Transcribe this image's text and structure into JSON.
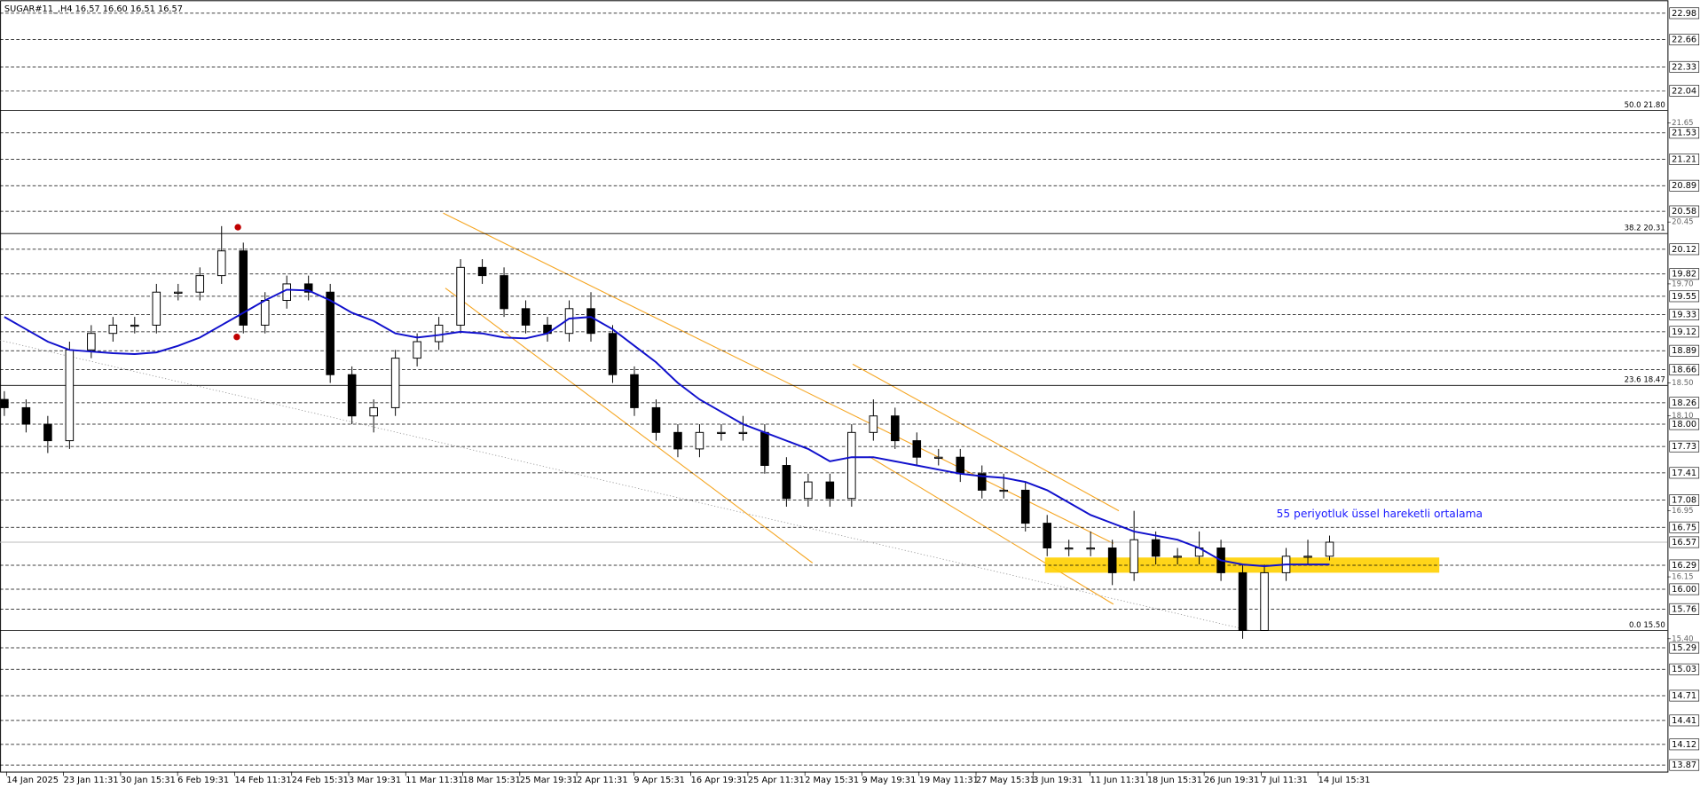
{
  "chart_data": {
    "type": "candlestick",
    "title": "SUGAR#11_,H4  16.57 16.60 16.51 16.57",
    "annotation": "55 periyotluk üssel hareketli ortalama",
    "ylim": [
      13.87,
      22.98
    ],
    "yticks": [
      22.98,
      22.66,
      22.33,
      {
        "value": 22.04,
        "label": "22.04"
      },
      21.53,
      21.21,
      20.89,
      20.58,
      20.12,
      19.82,
      19.55,
      19.33,
      19.12,
      18.89,
      18.66,
      18.26,
      {
        "value": 18.0,
        "label": "18.00"
      },
      17.73,
      17.41,
      17.08,
      16.75,
      16.29,
      {
        "value": 16.0,
        "label": "16.00"
      },
      15.76,
      15.29,
      15.03,
      14.71,
      14.41,
      14.12,
      13.87
    ],
    "minor_ticks": [
      {
        "value": 21.65,
        "label": "21.65"
      },
      {
        "value": 20.45,
        "label": "20.45"
      },
      {
        "value": 19.7,
        "label": "19.70"
      },
      {
        "value": 18.5,
        "label": "18.50"
      },
      {
        "value": 18.1,
        "label": "18.10"
      },
      {
        "value": 16.95,
        "label": "16.95"
      },
      {
        "value": 16.15,
        "label": "16.15"
      },
      {
        "value": 15.4,
        "label": "15.40"
      }
    ],
    "levels": [
      {
        "value": 21.8,
        "label": "50.0 21.80"
      },
      {
        "value": 20.31,
        "label": "38.2 20.31"
      },
      {
        "value": 18.47,
        "label": "23.6 18.47"
      },
      {
        "value": 15.5,
        "label": "0.0 15.50"
      }
    ],
    "last_price": 16.57,
    "grid": true,
    "x_labels": [
      "14 Jan 2025",
      "23 Jan 11:31",
      "30 Jan 15:31",
      "6 Feb 19:31",
      "14 Feb 11:31",
      "24 Feb 15:31",
      "3 Mar 19:31",
      "11 Mar 11:31",
      "18 Mar 15:31",
      "25 Mar 19:31",
      "2 Apr 11:31",
      "9 Apr 15:31",
      "16 Apr 19:31",
      "25 Apr 11:31",
      "2 May 15:31",
      "9 May 19:31",
      "19 May 11:31",
      "27 May 15:31",
      "3 Jun 19:31",
      "11 Jun 11:31",
      "18 Jun 15:31",
      "26 Jun 19:31",
      "7 Jul 11:31",
      "14 Jul 15:31"
    ],
    "open": [
      18.3,
      18.2,
      18.0,
      17.8,
      18.9,
      19.1,
      19.2,
      19.2,
      19.6,
      19.6,
      19.8,
      20.1,
      19.2,
      19.5,
      19.7,
      19.6,
      18.6,
      18.1,
      18.2,
      18.8,
      19.0,
      19.2,
      19.9,
      19.8,
      19.4,
      19.2,
      19.1,
      19.4,
      19.1,
      18.6,
      18.2,
      17.9,
      17.7,
      17.9,
      17.9,
      17.9,
      17.5,
      17.1,
      17.3,
      17.1,
      17.9,
      18.1,
      17.8,
      17.6,
      17.6,
      17.4,
      17.2,
      17.2,
      16.8,
      16.5,
      16.5,
      16.5,
      16.2,
      16.6,
      16.4,
      16.4,
      16.5,
      16.2,
      15.5,
      16.2,
      16.4,
      16.4
    ],
    "high": [
      18.4,
      18.3,
      18.1,
      19.0,
      19.2,
      19.3,
      19.3,
      19.7,
      19.7,
      19.9,
      20.4,
      20.2,
      19.6,
      19.8,
      19.8,
      19.7,
      18.7,
      18.3,
      18.9,
      19.1,
      19.3,
      20.0,
      20.0,
      19.9,
      19.5,
      19.3,
      19.5,
      19.6,
      19.2,
      18.7,
      18.3,
      18.0,
      18.0,
      18.0,
      18.1,
      18.0,
      17.6,
      17.4,
      17.4,
      18.0,
      18.3,
      18.2,
      17.9,
      17.7,
      17.7,
      17.5,
      17.4,
      17.3,
      16.9,
      16.6,
      16.7,
      16.6,
      16.95,
      16.7,
      16.5,
      16.7,
      16.6,
      16.3,
      16.3,
      16.5,
      16.6,
      16.65
    ],
    "low": [
      18.1,
      17.9,
      17.65,
      17.7,
      18.8,
      19.0,
      19.1,
      19.1,
      19.5,
      19.5,
      19.7,
      19.1,
      19.1,
      19.4,
      19.5,
      18.5,
      18.0,
      17.9,
      18.1,
      18.7,
      18.9,
      19.1,
      19.7,
      19.3,
      19.1,
      19.0,
      19.0,
      19.0,
      18.5,
      18.1,
      17.8,
      17.6,
      17.6,
      17.8,
      17.8,
      17.4,
      17.0,
      17.0,
      17.0,
      17.0,
      17.8,
      17.7,
      17.5,
      17.5,
      17.3,
      17.1,
      17.1,
      16.7,
      16.4,
      16.4,
      16.4,
      16.05,
      16.1,
      16.3,
      16.3,
      16.3,
      16.1,
      15.4,
      15.5,
      16.1,
      16.3,
      16.35
    ],
    "close": [
      18.2,
      18.0,
      17.8,
      18.9,
      19.1,
      19.2,
      19.2,
      19.6,
      19.6,
      19.8,
      20.1,
      19.2,
      19.5,
      19.7,
      19.6,
      18.6,
      18.1,
      18.2,
      18.8,
      19.0,
      19.2,
      19.9,
      19.8,
      19.4,
      19.2,
      19.1,
      19.4,
      19.1,
      18.6,
      18.2,
      17.9,
      17.7,
      17.9,
      17.9,
      17.9,
      17.5,
      17.1,
      17.3,
      17.1,
      17.9,
      18.1,
      17.8,
      17.6,
      17.6,
      17.4,
      17.2,
      17.2,
      16.8,
      16.5,
      16.5,
      16.5,
      16.2,
      16.6,
      16.4,
      16.4,
      16.5,
      16.2,
      15.5,
      16.2,
      16.4,
      16.4,
      16.57
    ],
    "ema": {
      "color": "#1010cc",
      "values": [
        19.3,
        19.15,
        19.0,
        18.9,
        18.88,
        18.86,
        18.85,
        18.87,
        18.95,
        19.05,
        19.2,
        19.35,
        19.5,
        19.63,
        19.62,
        19.5,
        19.35,
        19.25,
        19.1,
        19.05,
        19.08,
        19.12,
        19.1,
        19.05,
        19.04,
        19.1,
        19.28,
        19.3,
        19.15,
        18.95,
        18.75,
        18.5,
        18.3,
        18.15,
        18.0,
        17.9,
        17.8,
        17.7,
        17.55,
        17.6,
        17.6,
        17.55,
        17.5,
        17.45,
        17.4,
        17.37,
        17.35,
        17.3,
        17.2,
        17.05,
        16.9,
        16.8,
        16.7,
        16.65,
        16.6,
        16.5,
        16.35,
        16.3,
        16.28,
        16.3,
        16.3,
        16.3
      ]
    }
  }
}
